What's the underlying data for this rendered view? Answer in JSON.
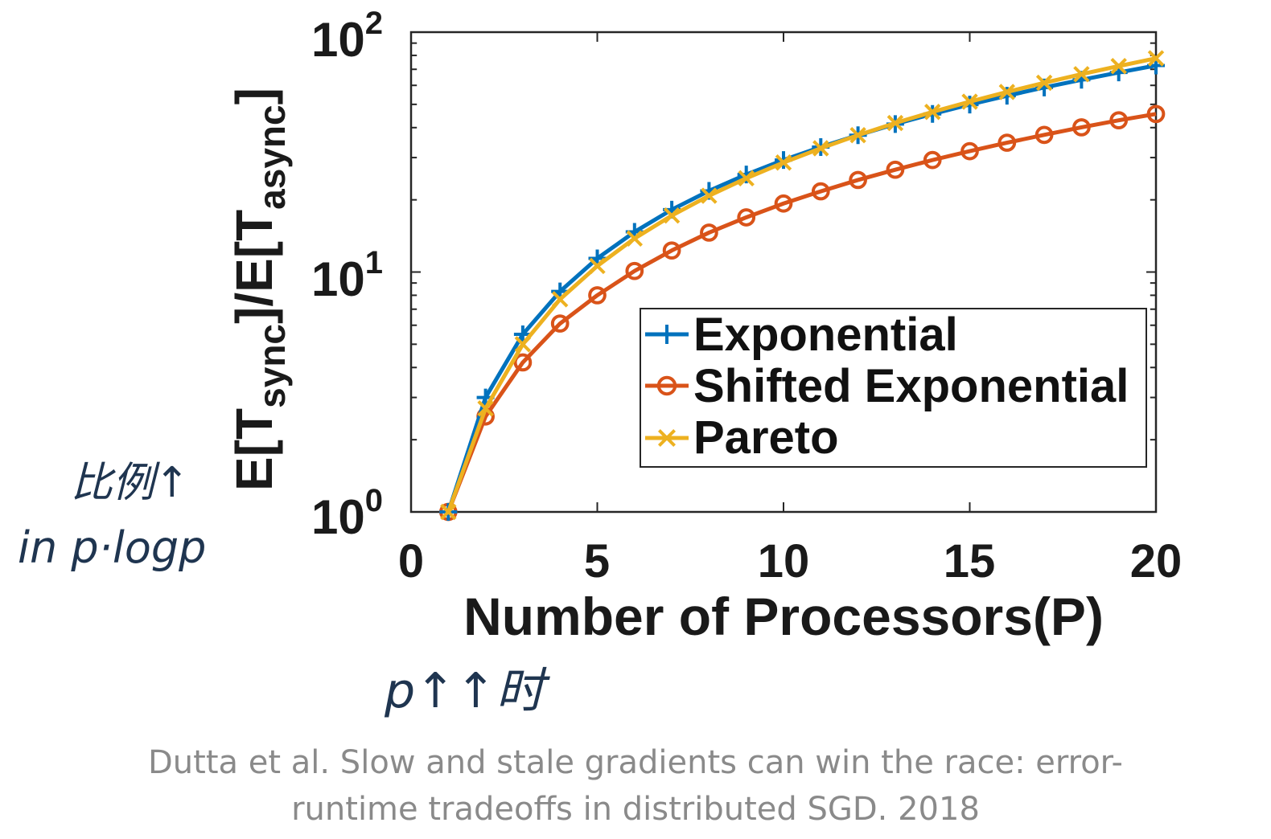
{
  "chart_data": {
    "type": "line",
    "title": "",
    "xlabel": "Number of Processors(P)",
    "ylabel_parts": {
      "base": "E[T",
      "sub1": "sync",
      "mid": "]/E[T",
      "sub2": "async",
      "end": "]"
    },
    "x": [
      1,
      2,
      3,
      4,
      5,
      6,
      7,
      8,
      9,
      10,
      11,
      12,
      13,
      14,
      15,
      16,
      17,
      18,
      19,
      20
    ],
    "xlim": [
      0,
      20
    ],
    "ylim": [
      1,
      100
    ],
    "yscale": "log",
    "xticks": [
      0,
      5,
      10,
      15,
      20
    ],
    "xtick_labels": [
      "0",
      "5",
      "10",
      "15",
      "20"
    ],
    "yticks": [
      1,
      10,
      100
    ],
    "ytick_labels": [
      {
        "base": "10",
        "exp": "0"
      },
      {
        "base": "10",
        "exp": "1"
      },
      {
        "base": "10",
        "exp": "2"
      }
    ],
    "grid": false,
    "legend_position": "lower-right",
    "series": [
      {
        "name": "Exponential",
        "color": "#0072BD",
        "marker": "+",
        "values": [
          1.0,
          3.0,
          5.5,
          8.3,
          11.4,
          14.7,
          18.2,
          21.8,
          25.5,
          29.3,
          33.2,
          37.2,
          41.4,
          45.6,
          49.9,
          54.3,
          58.8,
          63.3,
          67.9,
          72.6
        ]
      },
      {
        "name": "Shifted Exponential",
        "color": "#D95319",
        "marker": "o",
        "values": [
          1.0,
          2.5,
          4.2,
          6.1,
          8.0,
          10.1,
          12.3,
          14.6,
          16.9,
          19.3,
          21.7,
          24.2,
          26.7,
          29.3,
          31.9,
          34.6,
          37.3,
          40.1,
          42.9,
          45.6
        ]
      },
      {
        "name": "Pareto",
        "color": "#EDB120",
        "marker": "x",
        "values": [
          1.0,
          2.7,
          5.0,
          7.7,
          10.6,
          13.8,
          17.2,
          20.8,
          24.6,
          28.6,
          32.8,
          37.2,
          41.8,
          46.5,
          51.3,
          56.3,
          61.5,
          66.8,
          72.2,
          77.8
        ]
      }
    ]
  },
  "annotations": {
    "note_left_1": "比例↑",
    "note_left_2": "in p·logp",
    "note_bottom": "p↑↑时"
  },
  "caption": {
    "line1": "Dutta et al. Slow and stale gradients can win the race: error-",
    "line2": "runtime tradeoffs in distributed SGD. 2018"
  }
}
